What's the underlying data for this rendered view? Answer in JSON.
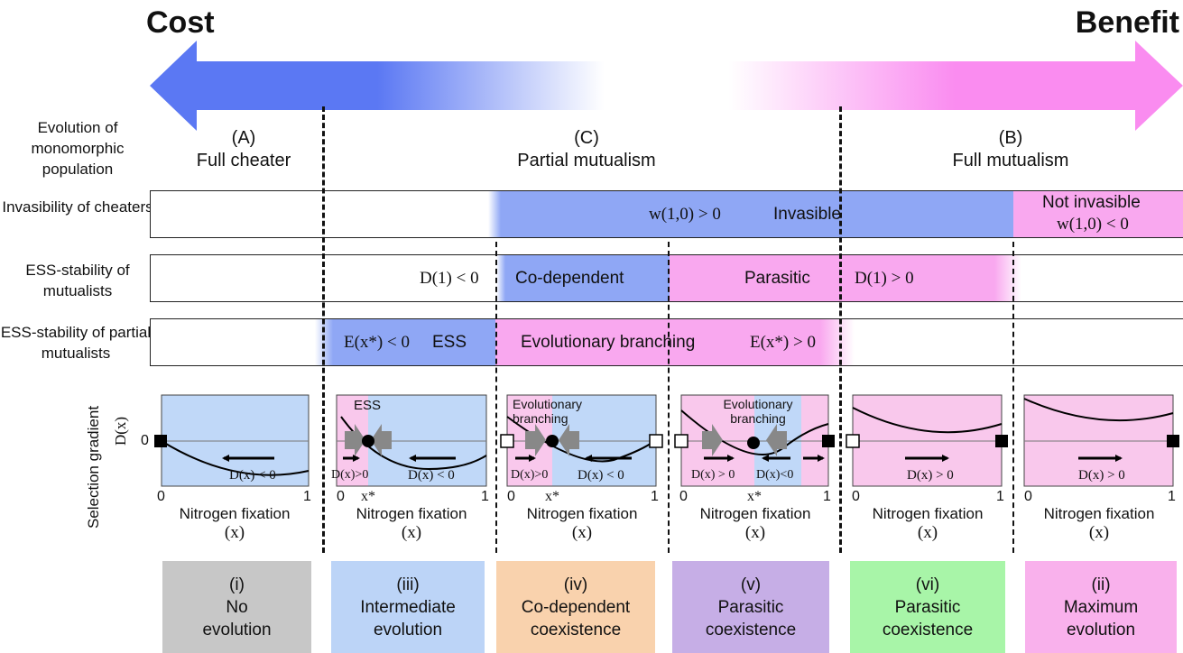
{
  "header": {
    "cost": "Cost",
    "benefit": "Benefit"
  },
  "rows": {
    "evolution": "Evolution of monomorphic population",
    "invasibility": "Invasibility of cheaters",
    "ess_mutualists": "ESS-stability of mutualists",
    "ess_partial": "ESS-stability of partial mutualists",
    "gradient_axis": "Selection gradient",
    "gradient_symbol": "D(x)"
  },
  "regimes": {
    "a_letter": "(A)",
    "a_name": "Full cheater",
    "c_letter": "(C)",
    "c_name": "Partial mutualism",
    "b_letter": "(B)",
    "b_name": "Full mutualism"
  },
  "bars": {
    "invasible_cond": "w(1,0) > 0",
    "invasible": "Invasible",
    "not_invasible": "Not invasible",
    "not_invasible_cond": "w(1,0) < 0",
    "d1_neg": "D(1) < 0",
    "codependent": "Co-dependent",
    "parasitic": "Parasitic",
    "d1_pos": "D(1) > 0",
    "e_neg": "E(x*) < 0",
    "ess": "ESS",
    "branching": "Evolutionary branching",
    "e_pos": "E(x*) > 0"
  },
  "panels": {
    "xlabel": "Nitrogen fixation",
    "xsym": "(x)",
    "zero": "0",
    "one": "1",
    "xstar": "x*",
    "y0": "0",
    "p1_cond": "D(x) < 0",
    "p2_ess": "ESS",
    "p2_left": "D(x)>0",
    "p2_right": "D(x) < 0",
    "p3_branch": "Evolutionary branching",
    "p3_left": "D(x)>0",
    "p3_right": "D(x) < 0",
    "p4_branch": "Evolutionary branching",
    "p4_left": "D(x) > 0",
    "p4_right": "D(x)<0",
    "p5_cond": "D(x) > 0",
    "p6_cond": "D(x) > 0"
  },
  "outcomes": [
    {
      "num": "(i)",
      "l1": "No",
      "l2": "evolution",
      "color": "#c7c7c7"
    },
    {
      "num": "(iii)",
      "l1": "Intermediate",
      "l2": "evolution",
      "color": "#bcd4f7"
    },
    {
      "num": "(iv)",
      "l1": "Co-dependent",
      "l2": "coexistence",
      "color": "#f9d2ad"
    },
    {
      "num": "(v)",
      "l1": "Parasitic",
      "l2": "coexistence",
      "color": "#c6aee6"
    },
    {
      "num": "(vi)",
      "l1": "Parasitic",
      "l2": "coexistence",
      "color": "#a8f5a8"
    },
    {
      "num": "(ii)",
      "l1": "Maximum",
      "l2": "evolution",
      "color": "#f9b1ec"
    }
  ],
  "colors": {
    "blue": "#8fa7f5",
    "pink": "#f9a8ef",
    "panel_blue": "#c0d8f8",
    "panel_pink": "#f9c8ec",
    "arrow_blue": "#5a78f2",
    "arrow_pink": "#fa8cf0"
  }
}
